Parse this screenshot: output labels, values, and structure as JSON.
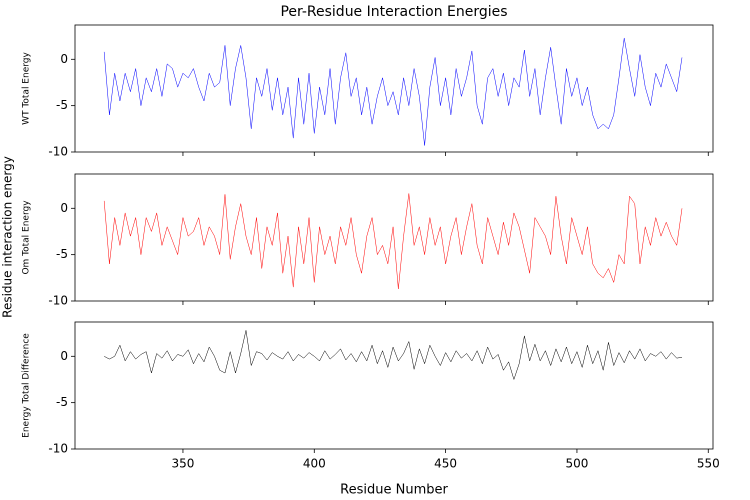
{
  "figure_ylabel": "Residue interaction energy",
  "chart_data": [
    {
      "type": "line",
      "title": "Per-Residue Interaction Energies",
      "ylabel": "WT Total Energy",
      "xlim": [
        308.9,
        551.8
      ],
      "ylim": [
        -10,
        3.7
      ],
      "xticks": [
        350,
        400,
        450,
        500,
        550
      ],
      "yticks": [
        -10,
        -5,
        0
      ],
      "x": [
        320,
        322,
        324,
        326,
        328,
        330,
        332,
        334,
        336,
        338,
        340,
        342,
        344,
        346,
        348,
        350,
        352,
        354,
        356,
        358,
        360,
        362,
        364,
        366,
        368,
        370,
        372,
        374,
        376,
        378,
        380,
        382,
        384,
        386,
        388,
        390,
        392,
        394,
        396,
        398,
        400,
        402,
        404,
        406,
        408,
        410,
        412,
        414,
        416,
        418,
        420,
        422,
        424,
        426,
        428,
        430,
        432,
        434,
        436,
        438,
        440,
        442,
        444,
        446,
        448,
        450,
        452,
        454,
        456,
        458,
        460,
        462,
        464,
        466,
        468,
        470,
        472,
        474,
        476,
        478,
        480,
        482,
        484,
        486,
        488,
        490,
        492,
        494,
        496,
        498,
        500,
        502,
        504,
        506,
        508,
        510,
        512,
        514,
        516,
        518,
        520,
        522,
        524,
        526,
        528,
        530,
        532,
        534,
        536,
        538,
        540
      ],
      "series": [
        {
          "name": "WT",
          "color": "#0000ff",
          "values": [
            0.8,
            -6,
            -1.5,
            -4.5,
            -1.5,
            -3.5,
            -1,
            -5,
            -2,
            -3.5,
            -1,
            -4,
            -0.5,
            -1,
            -3,
            -1.5,
            -2,
            -1,
            -3,
            -4.5,
            -1.5,
            -3,
            -2.5,
            1.5,
            -5,
            -1,
            1.5,
            -2,
            -7.5,
            -2,
            -4,
            -1,
            -5.5,
            -2,
            -6,
            -3,
            -8.5,
            -2,
            -7,
            -1.5,
            -8,
            -3,
            -6,
            -1,
            -7,
            -2,
            0.7,
            -4,
            -2,
            -6,
            -3,
            -7,
            -4,
            -2,
            -5,
            -3.5,
            -6,
            -2,
            -5,
            -1,
            -4,
            -9.3,
            -3,
            0.2,
            -5,
            -2,
            -6,
            -1,
            -4,
            -2,
            0.9,
            -5,
            -7,
            -2,
            -1,
            -4,
            -1.5,
            -5,
            -2,
            -3,
            1,
            -4,
            -1,
            -6,
            -2,
            1.3,
            -3,
            -7,
            -1,
            -4,
            -2,
            -5,
            -3,
            -6,
            -7.5,
            -7,
            -7.5,
            -6,
            -2,
            2.3,
            -1,
            -4,
            0.5,
            -3,
            -5,
            -1.5,
            -3,
            -0.5,
            -2,
            -3.5,
            0.2
          ]
        }
      ]
    },
    {
      "type": "line",
      "ylabel": "Om Total Energy",
      "xlim": [
        308.9,
        551.8
      ],
      "ylim": [
        -10,
        3.7
      ],
      "xticks": [
        350,
        400,
        450,
        500,
        550
      ],
      "yticks": [
        -10,
        -5,
        0
      ],
      "x": [
        320,
        322,
        324,
        326,
        328,
        330,
        332,
        334,
        336,
        338,
        340,
        342,
        344,
        346,
        348,
        350,
        352,
        354,
        356,
        358,
        360,
        362,
        364,
        366,
        368,
        370,
        372,
        374,
        376,
        378,
        380,
        382,
        384,
        386,
        388,
        390,
        392,
        394,
        396,
        398,
        400,
        402,
        404,
        406,
        408,
        410,
        412,
        414,
        416,
        418,
        420,
        422,
        424,
        426,
        428,
        430,
        432,
        434,
        436,
        438,
        440,
        442,
        444,
        446,
        448,
        450,
        452,
        454,
        456,
        458,
        460,
        462,
        464,
        466,
        468,
        470,
        472,
        474,
        476,
        478,
        480,
        482,
        484,
        486,
        488,
        490,
        492,
        494,
        496,
        498,
        500,
        502,
        504,
        506,
        508,
        510,
        512,
        514,
        516,
        518,
        520,
        522,
        524,
        526,
        528,
        530,
        532,
        534,
        536,
        538,
        540
      ],
      "series": [
        {
          "name": "Om",
          "color": "#ff0000",
          "values": [
            0.8,
            -6,
            -1,
            -4,
            -0.5,
            -3,
            -1,
            -5,
            -1,
            -2.5,
            -0.5,
            -4,
            -2,
            -3.5,
            -5,
            -1,
            -3,
            -2.5,
            -1,
            -4,
            -2,
            -3,
            -5,
            1.5,
            -5.5,
            -2,
            0.5,
            -3,
            -5,
            -1,
            -6.5,
            -2,
            -4,
            -0.5,
            -7,
            -3,
            -8.5,
            -2,
            -6,
            -1,
            -8,
            -2,
            -5,
            -3,
            -6,
            -2,
            -4,
            -1,
            -5,
            -7,
            -3,
            -1,
            -5,
            -4,
            -6,
            -2,
            -8.7,
            -3,
            1.6,
            -4,
            -2,
            -5,
            -1,
            -4,
            -2,
            -6,
            -3,
            -1,
            -5,
            -2,
            0.5,
            -4,
            -6,
            -1,
            -3,
            -5,
            -1.5,
            -4,
            -0.5,
            -2,
            -4.5,
            -7,
            -1,
            -2,
            -3,
            -5,
            1.3,
            -3,
            -6,
            -1,
            -3,
            -5,
            -2,
            -6,
            -7,
            -7.5,
            -6.5,
            -8,
            -5,
            -6,
            1.3,
            0.5,
            -6,
            -2,
            -4,
            -1,
            -3,
            -1.5,
            -3,
            -4,
            0
          ]
        }
      ]
    },
    {
      "type": "line",
      "ylabel": "Energy Total Difference",
      "xlabel": "Residue Number",
      "xlim": [
        308.9,
        551.8
      ],
      "ylim": [
        -10,
        3.7
      ],
      "xticks": [
        350,
        400,
        450,
        500,
        550
      ],
      "yticks": [
        -10,
        -5,
        0
      ],
      "x": [
        320,
        322,
        324,
        326,
        328,
        330,
        332,
        334,
        336,
        338,
        340,
        342,
        344,
        346,
        348,
        350,
        352,
        354,
        356,
        358,
        360,
        362,
        364,
        366,
        368,
        370,
        372,
        374,
        376,
        378,
        380,
        382,
        384,
        386,
        388,
        390,
        392,
        394,
        396,
        398,
        400,
        402,
        404,
        406,
        408,
        410,
        412,
        414,
        416,
        418,
        420,
        422,
        424,
        426,
        428,
        430,
        432,
        434,
        436,
        438,
        440,
        442,
        444,
        446,
        448,
        450,
        452,
        454,
        456,
        458,
        460,
        462,
        464,
        466,
        468,
        470,
        472,
        474,
        476,
        478,
        480,
        482,
        484,
        486,
        488,
        490,
        492,
        494,
        496,
        498,
        500,
        502,
        504,
        506,
        508,
        510,
        512,
        514,
        516,
        518,
        520,
        522,
        524,
        526,
        528,
        530,
        532,
        534,
        536,
        538,
        540
      ],
      "series": [
        {
          "name": "Difference",
          "color": "#000000",
          "values": [
            0,
            -0.3,
            0,
            1.2,
            -0.5,
            0.5,
            -0.3,
            0.2,
            0.5,
            -1.8,
            0.3,
            -0.2,
            0.6,
            -0.5,
            0.2,
            0,
            0.7,
            -0.8,
            0.3,
            -0.6,
            1,
            0,
            -1.5,
            -1.8,
            0.5,
            -1.8,
            0.3,
            2.8,
            -1,
            0.5,
            0.3,
            -0.4,
            0.4,
            0,
            -0.3,
            0.5,
            -0.5,
            0.2,
            -0.2,
            0.4,
            0,
            -0.5,
            0.6,
            -0.3,
            0.2,
            0.8,
            -0.4,
            0.3,
            -0.6,
            0.5,
            -0.5,
            1.2,
            -0.8,
            0.6,
            -1.2,
            1,
            -0.5,
            0.3,
            1.6,
            -1.4,
            0.8,
            -0.8,
            1.2,
            0,
            -1,
            0.4,
            -0.6,
            0.6,
            -0.2,
            0.3,
            -0.5,
            0.6,
            -0.8,
            1,
            -0.3,
            0.2,
            -1.5,
            -0.6,
            -2.5,
            -0.8,
            2.2,
            -0.5,
            1.3,
            -0.5,
            0.6,
            -1,
            0.8,
            -0.6,
            1,
            -0.8,
            0.5,
            -1.2,
            1.2,
            -0.8,
            0.6,
            -1.5,
            1.5,
            -1,
            0.4,
            -0.7,
            0.6,
            -0.3,
            0.8,
            -0.5,
            0.3,
            0,
            0.5,
            -0.3,
            0.4,
            -0.2,
            -0.1
          ]
        }
      ]
    }
  ]
}
